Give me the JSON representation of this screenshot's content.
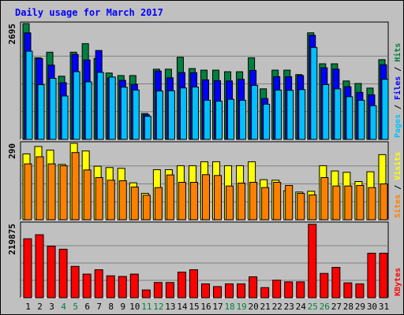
{
  "colors": {
    "background": "#c0c0c0",
    "plot_background": "#c0c0c0",
    "title": "#0000ff",
    "pages": "#00c0ff",
    "files": "#0000ff",
    "hits": "#008040",
    "sites": "#ff8000",
    "visits": "#ffff00",
    "kbytes": "#ff0000",
    "weekend_tick": "#008040",
    "tick": "#000000",
    "gridline": "#7f7f7f"
  },
  "chart_data": [
    {
      "type": "bar",
      "title": "Daily usage for March 2017",
      "categories": [
        "1",
        "2",
        "3",
        "4",
        "5",
        "6",
        "7",
        "8",
        "9",
        "10",
        "11",
        "12",
        "13",
        "14",
        "15",
        "16",
        "17",
        "18",
        "19",
        "20",
        "21",
        "22",
        "23",
        "24",
        "25",
        "26",
        "27",
        "28",
        "29",
        "30",
        "31"
      ],
      "weekend_categories": [
        "4",
        "5",
        "11",
        "12",
        "18",
        "19",
        "25",
        "26"
      ],
      "ylabel_parts": [
        "Pages",
        "Files",
        "Hits"
      ],
      "ymax_label": "2695",
      "ylim": [
        0,
        2695
      ],
      "grid": true,
      "series": [
        {
          "name": "Hits",
          "values": [
            2695,
            1901,
            2030,
            1471,
            2030,
            2229,
            1886,
            1545,
            1486,
            1486,
            604,
            1634,
            1634,
            1912,
            1649,
            1612,
            1612,
            1575,
            1575,
            1900,
            1177,
            1612,
            1612,
            1508,
            2481,
            1760,
            1760,
            1360,
            1302,
            1194,
            1855
          ]
        },
        {
          "name": "Files",
          "values": [
            2480,
            1881,
            1728,
            1320,
            1978,
            1849,
            2070,
            1428,
            1375,
            1280,
            574,
            1591,
            1434,
            1556,
            1553,
            1386,
            1368,
            1360,
            1398,
            1605,
            951,
            1460,
            1460,
            1486,
            2423,
            1666,
            1636,
            1228,
            1095,
            1037,
            1738
          ]
        },
        {
          "name": "Pages",
          "values": [
            2053,
            1274,
            1421,
            1010,
            1576,
            1339,
            1561,
            1451,
            1216,
            1149,
            537,
            1128,
            1133,
            1198,
            1220,
            912,
            891,
            933,
            911,
            1257,
            819,
            1148,
            1142,
            1159,
            2140,
            1274,
            1177,
            993,
            910,
            784,
            1399
          ]
        }
      ]
    },
    {
      "type": "bar",
      "ylabel_parts": [
        "Sites",
        "Visits"
      ],
      "ymax_label": "290",
      "ylim": [
        0,
        290
      ],
      "grid": true,
      "series": [
        {
          "name": "Visits",
          "values": [
            250,
            278,
            264,
            210,
            290,
            261,
            203,
            198,
            195,
            140,
            100,
            190,
            190,
            205,
            205,
            220,
            220,
            205,
            205,
            220,
            152,
            150,
            110,
            105,
            108,
            205,
            185,
            180,
            145,
            182,
            247
          ]
        },
        {
          "name": "Sites",
          "values": [
            212,
            239,
            212,
            205,
            255,
            189,
            160,
            150,
            148,
            124,
            93,
            122,
            170,
            142,
            142,
            171,
            168,
            128,
            139,
            142,
            122,
            142,
            130,
            100,
            94,
            160,
            128,
            128,
            130,
            122,
            136
          ]
        }
      ]
    },
    {
      "type": "bar",
      "ylabel_parts": [
        "KBytes"
      ],
      "ymax_label": "219875",
      "ylim": [
        0,
        219875
      ],
      "grid": true,
      "series": [
        {
          "name": "KBytes",
          "values": [
            175000,
            187000,
            153000,
            144000,
            93000,
            70000,
            83000,
            65000,
            63000,
            70000,
            23000,
            45000,
            45000,
            76000,
            83000,
            41000,
            33000,
            41000,
            41000,
            62000,
            30000,
            52000,
            47000,
            47000,
            218000,
            72000,
            90000,
            44000,
            41000,
            132000,
            132000
          ]
        }
      ]
    }
  ]
}
